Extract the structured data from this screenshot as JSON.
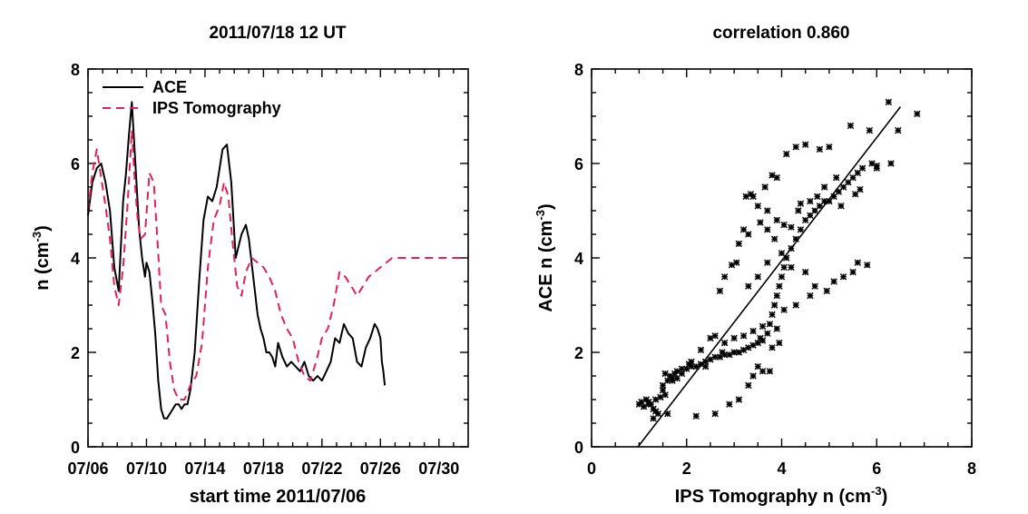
{
  "chart_data": [
    {
      "type": "line",
      "title": "2011/07/18 12 UT",
      "xlabel": "start time 2011/07/06",
      "ylabel_main": "n (cm",
      "ylabel_sup": "-3",
      "ylabel_close": ")",
      "xlim": [
        0,
        26
      ],
      "ylim": [
        0,
        8
      ],
      "y_ticks": [
        "0",
        "2",
        "4",
        "6",
        "8"
      ],
      "x_ticks": [
        {
          "day": 0,
          "label": "07/06"
        },
        {
          "day": 4,
          "label": "07/10"
        },
        {
          "day": 8,
          "label": "07/14"
        },
        {
          "day": 12,
          "label": "07/18"
        },
        {
          "day": 16,
          "label": "07/22"
        },
        {
          "day": 20,
          "label": "07/26"
        },
        {
          "day": 24,
          "label": "07/30"
        }
      ],
      "legend": "top-left",
      "series": [
        {
          "name": "ACE",
          "color": "#000000",
          "dash": "solid",
          "x": [
            0,
            0.3,
            0.6,
            0.9,
            1.2,
            1.5,
            1.8,
            2.1,
            2.4,
            2.6,
            2.8,
            3.0,
            3.2,
            3.5,
            3.7,
            3.9,
            4.0,
            4.2,
            4.4,
            4.6,
            4.8,
            5.0,
            5.2,
            5.4,
            5.6,
            5.8,
            6.0,
            6.2,
            6.4,
            6.6,
            6.8,
            7.0,
            7.3,
            7.6,
            7.9,
            8.2,
            8.5,
            8.8,
            9.2,
            9.5,
            9.8,
            10.1,
            10.5,
            10.8,
            11.0,
            11.3,
            11.6,
            11.8,
            12.0,
            12.2,
            12.4,
            12.6,
            12.8,
            13.0,
            13.3,
            13.6,
            13.9,
            14.2,
            14.5,
            14.8,
            15.1,
            15.4,
            15.7,
            16.0,
            16.3,
            16.6,
            16.9,
            17.2,
            17.5,
            17.8,
            18.1,
            18.4,
            18.7,
            19.0,
            19.3,
            19.6,
            19.8,
            20.0,
            20.1,
            20.2,
            20.3
          ],
          "y": [
            4.9,
            5.6,
            5.9,
            6.0,
            5.6,
            5.0,
            3.8,
            3.3,
            5.2,
            5.8,
            6.6,
            7.3,
            6.2,
            4.6,
            4.0,
            3.6,
            3.9,
            3.7,
            3.1,
            2.4,
            1.4,
            0.8,
            0.6,
            0.6,
            0.7,
            0.8,
            0.9,
            0.9,
            0.8,
            0.9,
            0.9,
            1.2,
            2.0,
            3.5,
            4.8,
            5.3,
            5.2,
            5.5,
            6.3,
            6.4,
            5.6,
            4.0,
            4.5,
            4.7,
            4.4,
            3.6,
            2.8,
            2.5,
            2.3,
            2.0,
            2.0,
            1.9,
            1.7,
            2.2,
            1.9,
            1.7,
            1.8,
            1.7,
            1.6,
            1.8,
            1.5,
            1.4,
            1.5,
            1.4,
            1.6,
            1.8,
            2.3,
            2.2,
            2.6,
            2.4,
            2.3,
            1.8,
            1.7,
            2.1,
            2.3,
            2.6,
            2.5,
            2.3,
            1.8,
            1.6,
            1.3
          ]
        },
        {
          "name": "IPS Tomography",
          "color": "#e0215a",
          "dash": "dashed",
          "x": [
            0,
            0.3,
            0.6,
            0.9,
            1.2,
            1.5,
            1.8,
            2.1,
            2.4,
            2.7,
            3.0,
            3.2,
            3.4,
            3.6,
            3.9,
            4.2,
            4.5,
            4.8,
            5.0,
            5.3,
            5.6,
            5.9,
            6.2,
            6.6,
            7.0,
            7.4,
            7.8,
            8.2,
            8.6,
            9.0,
            9.3,
            9.6,
            9.9,
            10.2,
            10.5,
            10.8,
            11.2,
            11.6,
            12.0,
            12.4,
            12.8,
            13.2,
            13.6,
            14.0,
            14.4,
            14.8,
            15.2,
            15.6,
            16.0,
            16.4,
            16.8,
            17.2,
            17.6,
            18.0,
            18.4,
            18.8,
            19.2,
            19.6,
            20.0,
            20.4,
            20.8,
            21.2,
            21.6,
            22.0,
            22.4,
            22.8,
            23.2,
            23.6,
            24.0,
            24.4,
            24.8,
            25.2,
            25.6,
            26.0
          ],
          "y": [
            5.0,
            5.8,
            6.3,
            5.7,
            5.1,
            4.4,
            3.4,
            3.0,
            3.8,
            5.1,
            6.7,
            5.6,
            4.8,
            4.4,
            4.5,
            5.8,
            5.6,
            4.1,
            3.0,
            2.8,
            1.8,
            1.2,
            1.0,
            1.0,
            1.3,
            1.5,
            2.2,
            3.8,
            4.8,
            5.1,
            5.6,
            5.3,
            4.3,
            3.4,
            3.2,
            3.7,
            4.0,
            3.9,
            3.8,
            3.6,
            3.3,
            2.8,
            2.5,
            2.3,
            1.8,
            1.5,
            1.4,
            1.8,
            2.3,
            2.5,
            3.0,
            3.7,
            3.6,
            3.4,
            3.2,
            3.4,
            3.6,
            3.7,
            3.8,
            3.9,
            4.0,
            4.0,
            4.0,
            4.0,
            4.0,
            4.0,
            4.0,
            4.0,
            4.0,
            4.0,
            4.0,
            4.0,
            4.0,
            4.0
          ]
        }
      ]
    },
    {
      "type": "scatter",
      "title": "correlation 0.860",
      "xlabel_main": "IPS Tomography n (cm",
      "xlabel_sup": "-3",
      "xlabel_close": ")",
      "ylabel_main": "ACE n (cm",
      "ylabel_sup": "-3",
      "ylabel_close": ")",
      "xlim": [
        0,
        8
      ],
      "ylim": [
        0,
        8
      ],
      "x_ticks": [
        "0",
        "2",
        "4",
        "6",
        "8"
      ],
      "y_ticks": [
        "0",
        "2",
        "4",
        "6",
        "8"
      ],
      "marker": "asterisk",
      "fit_line": {
        "x": [
          0.9,
          6.5
        ],
        "y": [
          -0.1,
          7.2
        ]
      },
      "points": [
        [
          1.0,
          0.9
        ],
        [
          1.05,
          0.95
        ],
        [
          1.1,
          0.85
        ],
        [
          1.15,
          1.0
        ],
        [
          1.2,
          0.95
        ],
        [
          1.25,
          0.9
        ],
        [
          1.3,
          0.8
        ],
        [
          1.35,
          0.75
        ],
        [
          1.4,
          0.7
        ],
        [
          1.45,
          1.05
        ],
        [
          1.5,
          1.2
        ],
        [
          1.55,
          1.1
        ],
        [
          1.6,
          1.4
        ],
        [
          1.65,
          1.5
        ],
        [
          1.7,
          1.45
        ],
        [
          1.75,
          1.55
        ],
        [
          1.8,
          1.6
        ],
        [
          1.9,
          1.55
        ],
        [
          2.0,
          1.65
        ],
        [
          2.1,
          1.7
        ],
        [
          2.2,
          1.7
        ],
        [
          2.3,
          1.75
        ],
        [
          2.4,
          1.8
        ],
        [
          2.5,
          1.85
        ],
        [
          2.6,
          1.9
        ],
        [
          2.7,
          1.9
        ],
        [
          2.8,
          1.95
        ],
        [
          2.9,
          1.95
        ],
        [
          3.0,
          2.0
        ],
        [
          3.1,
          2.0
        ],
        [
          3.2,
          2.05
        ],
        [
          3.3,
          2.1
        ],
        [
          3.4,
          2.15
        ],
        [
          3.5,
          2.2
        ],
        [
          3.6,
          2.25
        ],
        [
          3.7,
          2.4
        ],
        [
          3.75,
          2.6
        ],
        [
          3.8,
          2.8
        ],
        [
          3.85,
          3.0
        ],
        [
          3.9,
          3.2
        ],
        [
          3.95,
          3.4
        ],
        [
          4.0,
          3.6
        ],
        [
          4.05,
          3.8
        ],
        [
          4.1,
          4.0
        ],
        [
          4.2,
          4.2
        ],
        [
          4.3,
          4.4
        ],
        [
          4.4,
          4.6
        ],
        [
          4.5,
          4.8
        ],
        [
          4.6,
          4.9
        ],
        [
          4.7,
          5.0
        ],
        [
          4.8,
          5.1
        ],
        [
          4.9,
          5.2
        ],
        [
          5.0,
          5.2
        ],
        [
          5.1,
          5.3
        ],
        [
          5.2,
          5.4
        ],
        [
          5.3,
          5.5
        ],
        [
          5.4,
          5.6
        ],
        [
          5.5,
          5.7
        ],
        [
          5.6,
          5.8
        ],
        [
          5.7,
          5.9
        ],
        [
          5.9,
          6.0
        ],
        [
          6.0,
          5.95
        ],
        [
          6.3,
          6.0
        ],
        [
          6.85,
          7.05
        ],
        [
          6.25,
          7.3
        ],
        [
          5.45,
          6.8
        ],
        [
          5.85,
          6.7
        ],
        [
          5.0,
          6.35
        ],
        [
          4.5,
          6.4
        ],
        [
          4.8,
          6.3
        ],
        [
          4.3,
          6.35
        ],
        [
          4.1,
          6.2
        ],
        [
          3.9,
          5.7
        ],
        [
          3.8,
          5.75
        ],
        [
          3.65,
          5.5
        ],
        [
          3.4,
          5.3
        ],
        [
          3.35,
          5.35
        ],
        [
          3.25,
          5.3
        ],
        [
          3.5,
          5.1
        ],
        [
          3.7,
          5.0
        ],
        [
          3.9,
          4.8
        ],
        [
          4.05,
          4.7
        ],
        [
          4.2,
          4.65
        ],
        [
          4.35,
          5.0
        ],
        [
          4.4,
          5.15
        ],
        [
          4.6,
          5.2
        ],
        [
          4.75,
          5.3
        ],
        [
          4.9,
          5.5
        ],
        [
          3.3,
          4.5
        ],
        [
          3.2,
          4.6
        ],
        [
          3.1,
          4.3
        ],
        [
          3.05,
          3.9
        ],
        [
          2.95,
          3.85
        ],
        [
          2.8,
          3.6
        ],
        [
          2.7,
          3.3
        ],
        [
          3.3,
          3.4
        ],
        [
          3.5,
          3.6
        ],
        [
          3.7,
          3.9
        ],
        [
          4.5,
          3.7
        ],
        [
          4.7,
          3.4
        ],
        [
          4.95,
          3.3
        ],
        [
          5.1,
          3.5
        ],
        [
          5.3,
          3.6
        ],
        [
          5.5,
          3.7
        ],
        [
          5.6,
          3.9
        ],
        [
          5.8,
          3.85
        ],
        [
          4.3,
          3.0
        ],
        [
          4.05,
          2.9
        ],
        [
          3.9,
          2.5
        ],
        [
          3.6,
          2.55
        ],
        [
          3.4,
          2.45
        ],
        [
          3.2,
          2.35
        ],
        [
          3.0,
          2.3
        ],
        [
          2.8,
          2.2
        ],
        [
          2.6,
          2.35
        ],
        [
          2.5,
          2.3
        ],
        [
          2.3,
          2.05
        ],
        [
          2.1,
          1.8
        ],
        [
          1.9,
          1.65
        ],
        [
          1.7,
          1.4
        ],
        [
          1.5,
          1.3
        ],
        [
          1.35,
          1.0
        ],
        [
          3.75,
          1.6
        ],
        [
          3.6,
          1.6
        ],
        [
          3.5,
          1.7
        ],
        [
          3.4,
          1.5
        ],
        [
          3.3,
          1.3
        ],
        [
          3.1,
          1.0
        ],
        [
          2.9,
          0.9
        ],
        [
          2.6,
          0.7
        ],
        [
          2.2,
          0.65
        ],
        [
          1.6,
          0.7
        ],
        [
          1.3,
          0.6
        ],
        [
          1.2,
          0.9
        ],
        [
          1.55,
          1.55
        ],
        [
          1.8,
          1.45
        ],
        [
          2.05,
          1.75
        ],
        [
          2.4,
          1.7
        ],
        [
          2.75,
          2.0
        ],
        [
          3.55,
          2.3
        ],
        [
          3.8,
          2.1
        ],
        [
          3.95,
          2.2
        ],
        [
          4.6,
          3.2
        ],
        [
          4.2,
          3.8
        ],
        [
          4.0,
          4.1
        ],
        [
          3.85,
          4.4
        ],
        [
          3.7,
          4.6
        ],
        [
          3.55,
          4.75
        ],
        [
          5.25,
          5.1
        ],
        [
          5.55,
          5.35
        ],
        [
          5.65,
          5.45
        ],
        [
          6.0,
          5.9
        ],
        [
          5.15,
          5.7
        ],
        [
          6.45,
          6.7
        ]
      ]
    }
  ],
  "legend": {
    "ace_label": "ACE",
    "ips_label": "IPS Tomography"
  }
}
